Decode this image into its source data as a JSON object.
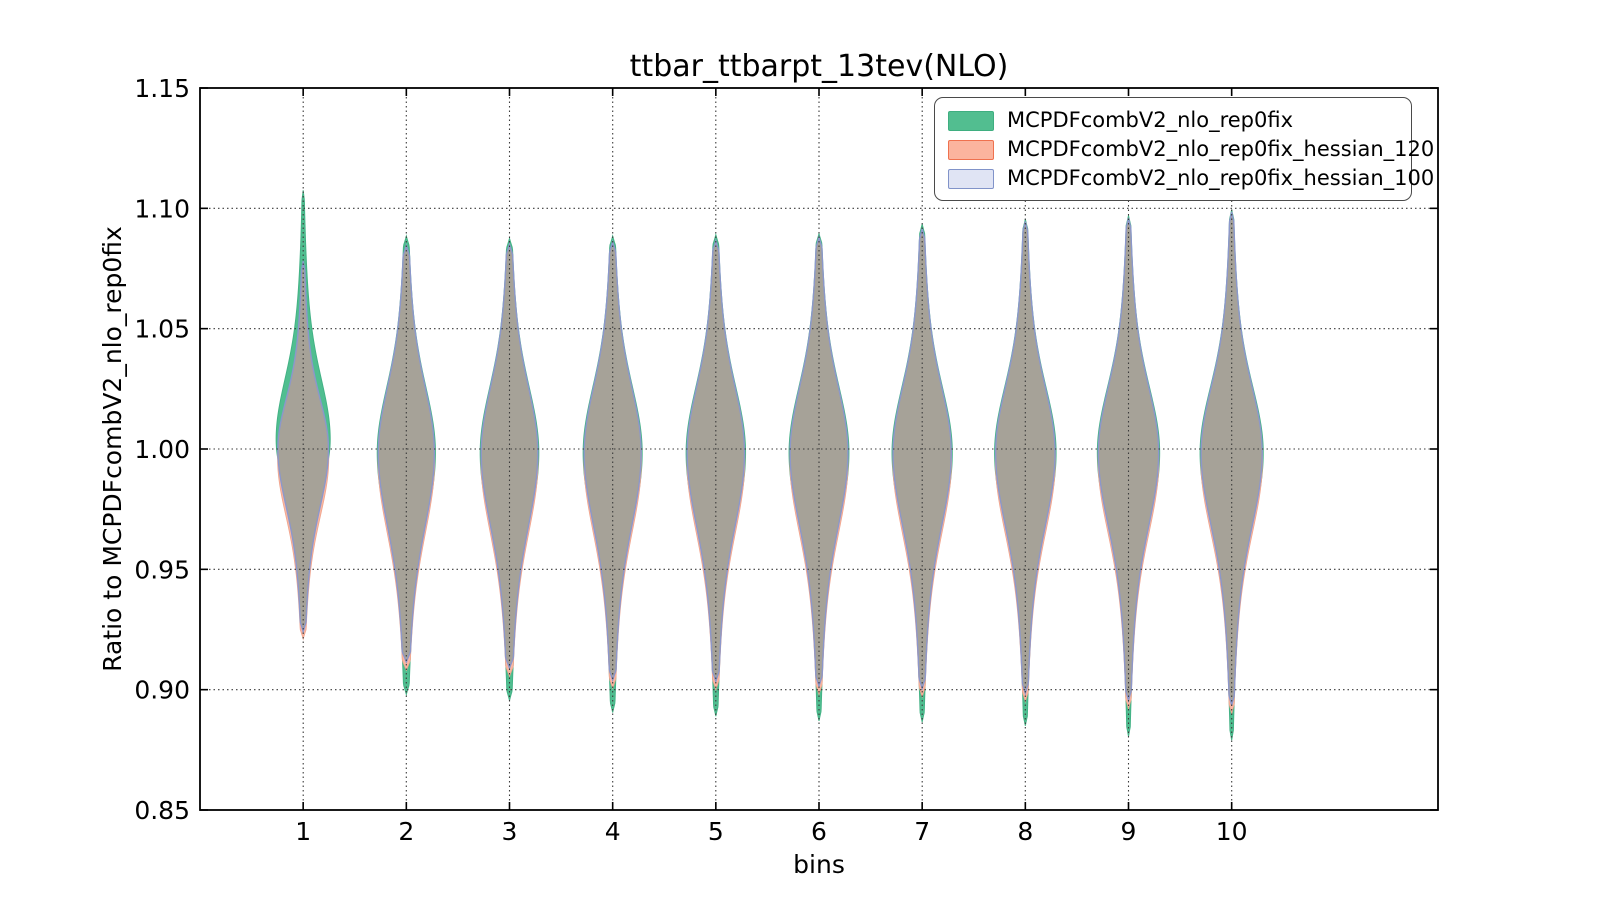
{
  "chart_data": {
    "type": "violin",
    "title": "ttbar_ttbarpt_13tev(NLO)",
    "xlabel": "bins",
    "ylabel": "Ratio to MCPDFcombV2_nlo_rep0fix",
    "xlim": [
      0,
      12
    ],
    "ylim": [
      0.85,
      1.15
    ],
    "xticks": [
      "1",
      "2",
      "3",
      "4",
      "5",
      "6",
      "7",
      "8",
      "9",
      "10"
    ],
    "xtick_positions": [
      1,
      2,
      3,
      4,
      5,
      6,
      7,
      8,
      9,
      10
    ],
    "yticks": [
      "0.85",
      "0.90",
      "0.95",
      "1.00",
      "1.05",
      "1.10",
      "1.15"
    ],
    "ytick_positions": [
      0.85,
      0.9,
      0.95,
      1.0,
      1.05,
      1.1,
      1.15
    ],
    "grid": {
      "on": true,
      "style": "dotted",
      "color": "#3a3a3a"
    },
    "legend": {
      "position": "upper right",
      "entries": [
        {
          "id": "rep0fix",
          "label": "MCPDFcombV2_nlo_rep0fix",
          "fill": "#52be90",
          "edge": "#3fae80"
        },
        {
          "id": "hessian_120",
          "label": "MCPDFcombV2_nlo_rep0fix_hessian_120",
          "fill": "#fbb49e",
          "edge": "#ef714e"
        },
        {
          "id": "hessian_100",
          "label": "MCPDFcombV2_nlo_rep0fix_hessian_100",
          "fill": "#e0e4f4",
          "edge": "#8193c9"
        }
      ]
    },
    "layer_colors": {
      "green": {
        "fill": "#50be90",
        "edge": "#43b285"
      },
      "salmon": {
        "fill": "#f9b7a2",
        "edge": "#f0a48d"
      },
      "blue": {
        "fill": "#a6a298",
        "edge": "#8c97cb"
      }
    },
    "violins": [
      {
        "bin": 1,
        "green": {
          "min": 0.9225,
          "max": 1.1075,
          "mu": 1.004,
          "hw": 0.262,
          "s_up": 0.023,
          "s_dn": 0.019
        },
        "salmon": {
          "min": 0.921,
          "max": 1.076,
          "mu": 0.996,
          "hw": 0.248,
          "s_up": 0.019,
          "s_dn": 0.022
        },
        "blue": {
          "min": 0.924,
          "max": 1.078,
          "mu": 1.0,
          "hw": 0.245,
          "s_up": 0.019,
          "s_dn": 0.022
        }
      },
      {
        "bin": 2,
        "green": {
          "min": 0.898,
          "max": 1.0885,
          "mu": 0.9985,
          "hw": 0.282,
          "s_up": 0.025,
          "s_dn": 0.028
        },
        "salmon": {
          "min": 0.908,
          "max": 1.0835,
          "mu": 0.9955,
          "hw": 0.275,
          "s_up": 0.025,
          "s_dn": 0.028
        },
        "blue": {
          "min": 0.9115,
          "max": 1.0845,
          "mu": 0.9985,
          "hw": 0.272,
          "s_up": 0.025,
          "s_dn": 0.028
        }
      },
      {
        "bin": 3,
        "green": {
          "min": 0.8955,
          "max": 1.0875,
          "mu": 0.9985,
          "hw": 0.284,
          "s_up": 0.025,
          "s_dn": 0.028
        },
        "salmon": {
          "min": 0.9055,
          "max": 1.084,
          "mu": 0.9955,
          "hw": 0.277,
          "s_up": 0.025,
          "s_dn": 0.028
        },
        "blue": {
          "min": 0.909,
          "max": 1.085,
          "mu": 0.9985,
          "hw": 0.274,
          "s_up": 0.025,
          "s_dn": 0.028
        }
      },
      {
        "bin": 4,
        "green": {
          "min": 0.8905,
          "max": 1.0885,
          "mu": 0.9985,
          "hw": 0.286,
          "s_up": 0.025,
          "s_dn": 0.028
        },
        "salmon": {
          "min": 0.9005,
          "max": 1.085,
          "mu": 0.9955,
          "hw": 0.279,
          "s_up": 0.025,
          "s_dn": 0.028
        },
        "blue": {
          "min": 0.904,
          "max": 1.086,
          "mu": 0.9985,
          "hw": 0.276,
          "s_up": 0.025,
          "s_dn": 0.028
        }
      },
      {
        "bin": 5,
        "green": {
          "min": 0.889,
          "max": 1.089,
          "mu": 0.9985,
          "hw": 0.288,
          "s_up": 0.025,
          "s_dn": 0.028
        },
        "salmon": {
          "min": 0.9,
          "max": 1.0855,
          "mu": 0.9955,
          "hw": 0.281,
          "s_up": 0.025,
          "s_dn": 0.028
        },
        "blue": {
          "min": 0.9035,
          "max": 1.0865,
          "mu": 0.9985,
          "hw": 0.278,
          "s_up": 0.025,
          "s_dn": 0.028
        }
      },
      {
        "bin": 6,
        "green": {
          "min": 0.887,
          "max": 1.0895,
          "mu": 0.9985,
          "hw": 0.29,
          "s_up": 0.025,
          "s_dn": 0.028
        },
        "salmon": {
          "min": 0.898,
          "max": 1.087,
          "mu": 0.9955,
          "hw": 0.283,
          "s_up": 0.025,
          "s_dn": 0.028
        },
        "blue": {
          "min": 0.9015,
          "max": 1.088,
          "mu": 0.9985,
          "hw": 0.28,
          "s_up": 0.025,
          "s_dn": 0.028
        }
      },
      {
        "bin": 7,
        "green": {
          "min": 0.8865,
          "max": 1.0935,
          "mu": 0.9985,
          "hw": 0.292,
          "s_up": 0.025,
          "s_dn": 0.028
        },
        "salmon": {
          "min": 0.897,
          "max": 1.0905,
          "mu": 0.9955,
          "hw": 0.285,
          "s_up": 0.025,
          "s_dn": 0.028
        },
        "blue": {
          "min": 0.9005,
          "max": 1.0915,
          "mu": 0.9985,
          "hw": 0.282,
          "s_up": 0.025,
          "s_dn": 0.028
        }
      },
      {
        "bin": 8,
        "green": {
          "min": 0.885,
          "max": 1.0955,
          "mu": 0.9985,
          "hw": 0.298,
          "s_up": 0.025,
          "s_dn": 0.028
        },
        "salmon": {
          "min": 0.895,
          "max": 1.0935,
          "mu": 0.9955,
          "hw": 0.291,
          "s_up": 0.025,
          "s_dn": 0.028
        },
        "blue": {
          "min": 0.8985,
          "max": 1.0945,
          "mu": 0.9985,
          "hw": 0.288,
          "s_up": 0.025,
          "s_dn": 0.028
        }
      },
      {
        "bin": 9,
        "green": {
          "min": 0.8805,
          "max": 1.097,
          "mu": 0.9985,
          "hw": 0.302,
          "s_up": 0.025,
          "s_dn": 0.028
        },
        "salmon": {
          "min": 0.892,
          "max": 1.095,
          "mu": 0.9955,
          "hw": 0.295,
          "s_up": 0.025,
          "s_dn": 0.028
        },
        "blue": {
          "min": 0.8955,
          "max": 1.096,
          "mu": 0.9985,
          "hw": 0.292,
          "s_up": 0.025,
          "s_dn": 0.028
        }
      },
      {
        "bin": 10,
        "green": {
          "min": 0.879,
          "max": 1.0995,
          "mu": 0.9985,
          "hw": 0.306,
          "s_up": 0.025,
          "s_dn": 0.028
        },
        "salmon": {
          "min": 0.89,
          "max": 1.0975,
          "mu": 0.9955,
          "hw": 0.299,
          "s_up": 0.025,
          "s_dn": 0.028
        },
        "blue": {
          "min": 0.8935,
          "max": 1.0985,
          "mu": 0.9985,
          "hw": 0.296,
          "s_up": 0.025,
          "s_dn": 0.028
        }
      }
    ]
  }
}
